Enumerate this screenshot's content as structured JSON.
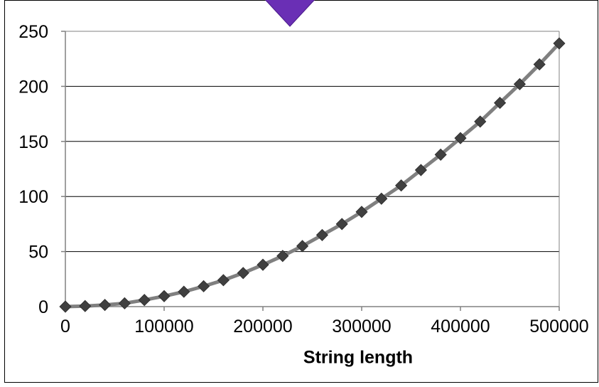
{
  "colors": {
    "background": "#ffffff",
    "gridline": "#000000",
    "axis": "#808080",
    "series_line": "#808080",
    "marker": "#404040",
    "decoration_fill": "#6a2fb5",
    "decoration_stroke": "#4a1a8a"
  },
  "decorations": [
    {
      "name": "purple-diamond-arrow",
      "shape": "diamond",
      "note": "partially visible at top, cropped"
    }
  ],
  "chart_data": {
    "type": "line",
    "title": "",
    "xlabel": "String length",
    "ylabel": "",
    "xlim": [
      0,
      500000
    ],
    "ylim": [
      0,
      250
    ],
    "xticks": [
      0,
      100000,
      200000,
      300000,
      400000,
      500000
    ],
    "xtick_labels": [
      "0",
      "100000",
      "200000",
      "300000",
      "400000",
      "500000"
    ],
    "yticks": [
      0,
      50,
      100,
      150,
      200,
      250
    ],
    "ytick_labels": [
      "0",
      "50",
      "100",
      "150",
      "200",
      "250"
    ],
    "grid": {
      "horizontal": true,
      "vertical": false
    },
    "legend": "none",
    "marker": "diamond",
    "series": [
      {
        "x": [
          0,
          20000,
          40000,
          60000,
          80000,
          100000,
          120000,
          140000,
          160000,
          180000,
          200000,
          220000,
          240000,
          260000,
          280000,
          300000,
          320000,
          340000,
          360000,
          380000,
          400000,
          420000,
          440000,
          460000,
          480000,
          500000
        ],
        "values": [
          0,
          0.5,
          1.5,
          3,
          6,
          9.5,
          13.5,
          18.5,
          24,
          30.5,
          38,
          46,
          55,
          65,
          75,
          86,
          98,
          110,
          124,
          138,
          153,
          168,
          185,
          202,
          220,
          239
        ]
      }
    ]
  }
}
